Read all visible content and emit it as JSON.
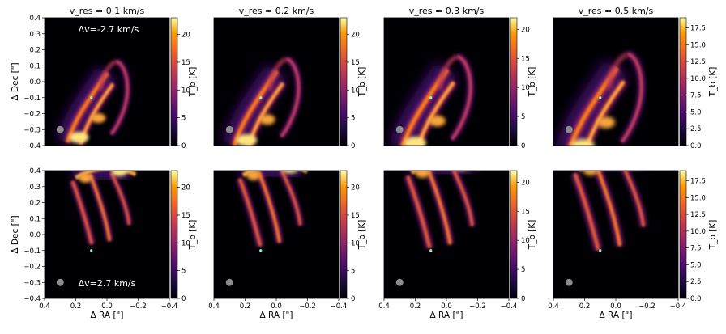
{
  "figure": {
    "column_titles": [
      "v_res = 0.1 km/s",
      "v_res = 0.2 km/s",
      "v_res = 0.3 km/s",
      "v_res = 0.5 km/s"
    ],
    "row_annotations": [
      "Δv=-2.7 km/s",
      "Δv=2.7 km/s"
    ],
    "colorbar_label": "T_b [K]",
    "xlabel": "Δ RA [\"]",
    "ylabel": "Δ Dec [\"]",
    "colormap": "inferno",
    "beam_color": "#8c8c8c",
    "star_marker_color": "#7fffd4"
  },
  "chart_data": {
    "type": "heatmap",
    "description_of_grid": "2 rows x 4 columns of brightness-temperature channel maps",
    "x_axis": {
      "label": "Δ RA [\"]",
      "range": [
        0.4,
        -0.4
      ],
      "ticks": [
        0.4,
        0.2,
        0.0,
        -0.2,
        -0.4
      ],
      "tick_labels": [
        "0.4",
        "0.2",
        "0.0",
        "−0.2",
        "−0.4"
      ]
    },
    "y_axis": {
      "label": "Δ Dec [\"]",
      "range": [
        -0.4,
        0.4
      ],
      "ticks": [
        -0.4,
        -0.3,
        -0.2,
        -0.1,
        0.0,
        0.1,
        0.2,
        0.3,
        0.4
      ],
      "tick_labels": [
        "−0.4",
        "−0.3",
        "−0.2",
        "−0.1",
        "0.0",
        "0.1",
        "0.2",
        "0.3",
        "0.4"
      ]
    },
    "star_position": [
      0.1,
      -0.1
    ],
    "beam_position": [
      0.3,
      -0.3
    ],
    "panels": [
      {
        "row": 0,
        "col": 0,
        "vres": "0.1 km/s",
        "dv": "Δv=-2.7 km/s",
        "cbar_max": 23,
        "cbar_ticks": [
          0,
          5,
          10,
          15,
          20
        ],
        "cbar_tick_labels": [
          "0",
          "5",
          "10",
          "15",
          "20"
        ]
      },
      {
        "row": 0,
        "col": 1,
        "vres": "0.2 km/s",
        "cbar_max": 23,
        "cbar_ticks": [
          0,
          5,
          10,
          15,
          20
        ],
        "cbar_tick_labels": [
          "0",
          "5",
          "10",
          "15",
          "20"
        ]
      },
      {
        "row": 0,
        "col": 2,
        "vres": "0.3 km/s",
        "cbar_max": 22,
        "cbar_ticks": [
          0,
          5,
          10,
          15,
          20
        ],
        "cbar_tick_labels": [
          "0",
          "5",
          "10",
          "15",
          "20"
        ]
      },
      {
        "row": 0,
        "col": 3,
        "vres": "0.5 km/s",
        "cbar_max": 19,
        "cbar_ticks": [
          0,
          2.5,
          5,
          7.5,
          10,
          12.5,
          15,
          17.5
        ],
        "cbar_tick_labels": [
          "0.0",
          "2.5",
          "5.0",
          "7.5",
          "10.0",
          "12.5",
          "15.0",
          "17.5"
        ]
      },
      {
        "row": 1,
        "col": 0,
        "vres": "0.1 km/s",
        "dv": "Δv=2.7 km/s",
        "cbar_max": 23,
        "cbar_ticks": [
          0,
          5,
          10,
          15,
          20
        ],
        "cbar_tick_labels": [
          "0",
          "5",
          "10",
          "15",
          "20"
        ]
      },
      {
        "row": 1,
        "col": 1,
        "vres": "0.2 km/s",
        "cbar_max": 23,
        "cbar_ticks": [
          0,
          5,
          10,
          15,
          20
        ],
        "cbar_tick_labels": [
          "0",
          "5",
          "10",
          "15",
          "20"
        ]
      },
      {
        "row": 1,
        "col": 2,
        "vres": "0.3 km/s",
        "cbar_max": 22,
        "cbar_ticks": [
          0,
          5,
          10,
          15,
          20
        ],
        "cbar_tick_labels": [
          "0",
          "5",
          "10",
          "15",
          "20"
        ]
      },
      {
        "row": 1,
        "col": 3,
        "vres": "0.5 km/s",
        "cbar_max": 19,
        "cbar_ticks": [
          0,
          2.5,
          5,
          7.5,
          10,
          12.5,
          15,
          17.5
        ],
        "cbar_tick_labels": [
          "0.0",
          "2.5",
          "5.0",
          "7.5",
          "10.0",
          "12.5",
          "15.0",
          "17.5"
        ]
      }
    ]
  }
}
